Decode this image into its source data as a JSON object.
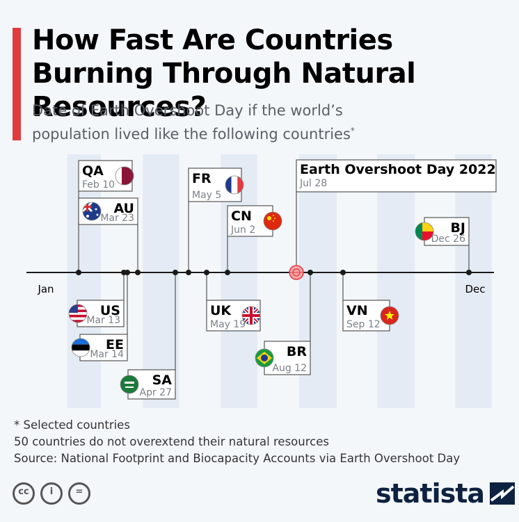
{
  "header": {
    "title": "How Fast Are Countries Burning Through Natural Resources?",
    "subtitle": "Date of Earth Overshoot Day if the world’s population lived like the following countries",
    "subtitle_mark": "*"
  },
  "chart_data": {
    "type": "timeline",
    "x_domain": [
      "Jan 1",
      "Dec 31"
    ],
    "axis_labels": {
      "start": "Jan",
      "end": "Dec"
    },
    "reference": {
      "name": "Earth Overshoot Day 2022",
      "date": "Jul 28",
      "month": 7,
      "day": 28,
      "color": "#e03a3e"
    },
    "points": [
      {
        "code": "QA",
        "date": "Feb 10",
        "month": 2,
        "day": 10,
        "side": "above",
        "flag": "qatar-flag"
      },
      {
        "code": "US",
        "date": "Mar 13",
        "month": 3,
        "day": 13,
        "side": "below",
        "flag": "usa-flag"
      },
      {
        "code": "EE",
        "date": "Mar 14",
        "month": 3,
        "day": 14,
        "side": "below",
        "flag": "estonia-flag"
      },
      {
        "code": "AU",
        "date": "Mar 23",
        "month": 3,
        "day": 23,
        "side": "above",
        "flag": "australia-flag"
      },
      {
        "code": "SA",
        "date": "Apr 27",
        "month": 4,
        "day": 27,
        "side": "below",
        "flag": "saudi-arabia-flag"
      },
      {
        "code": "FR",
        "date": "May 5",
        "month": 5,
        "day": 5,
        "side": "above",
        "flag": "france-flag"
      },
      {
        "code": "UK",
        "date": "May 19",
        "month": 5,
        "day": 19,
        "side": "below",
        "flag": "uk-flag"
      },
      {
        "code": "CN",
        "date": "Jun 2",
        "month": 6,
        "day": 2,
        "side": "above",
        "flag": "china-flag"
      },
      {
        "code": "BR",
        "date": "Aug 12",
        "month": 8,
        "day": 12,
        "side": "below",
        "flag": "brazil-flag"
      },
      {
        "code": "VN",
        "date": "Sep 12",
        "month": 9,
        "day": 12,
        "side": "below",
        "flag": "vietnam-flag"
      },
      {
        "code": "BJ",
        "date": "Dec 26",
        "month": 12,
        "day": 26,
        "side": "above",
        "flag": "benin-flag"
      }
    ],
    "stripes": "alternate-months",
    "colors": {
      "axis": "#1a1a1a",
      "stripe": "#e4ebf4",
      "box_border": "#555555",
      "date_text": "#7a7f86"
    }
  },
  "footer": {
    "notes": [
      "* Selected countries",
      "50 countries do not overextend their natural resources",
      "Source: National Footprint and Biocapacity Accounts via Earth Overshoot Day"
    ],
    "license_icons": [
      "cc-icon",
      "attribution-icon",
      "no-derivatives-icon"
    ],
    "brand": "statista"
  }
}
